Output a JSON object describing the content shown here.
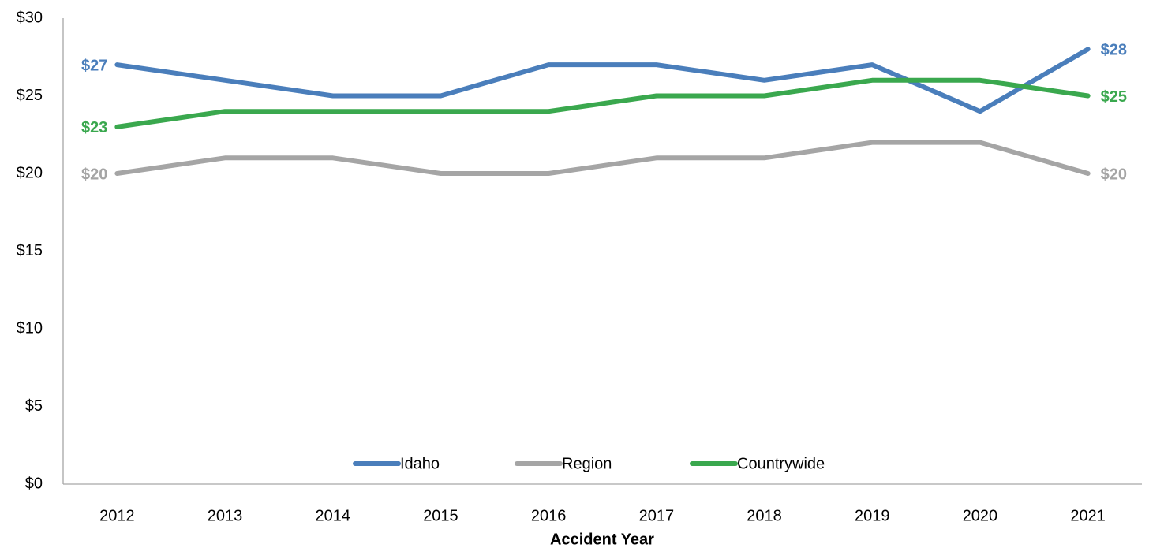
{
  "chart_data": {
    "type": "line",
    "x_label": "Accident Year",
    "categories": [
      "2012",
      "2013",
      "2014",
      "2015",
      "2016",
      "2017",
      "2018",
      "2019",
      "2020",
      "2021"
    ],
    "series": [
      {
        "name": "Idaho",
        "color": "#4a7ebb",
        "values": [
          27,
          26,
          25,
          25,
          27,
          27,
          26,
          27,
          24,
          28
        ],
        "value_labels": [
          "$27",
          null,
          null,
          null,
          null,
          null,
          null,
          null,
          null,
          "$28"
        ]
      },
      {
        "name": "Region",
        "color": "#a5a5a5",
        "values": [
          20,
          21,
          21,
          20,
          20,
          21,
          21,
          22,
          22,
          20
        ],
        "value_labels": [
          "$20",
          null,
          null,
          null,
          null,
          null,
          null,
          null,
          null,
          "$20"
        ]
      },
      {
        "name": "Countrywide",
        "color": "#3aa84e",
        "values": [
          23,
          24,
          24,
          24,
          24,
          25,
          25,
          26,
          26,
          25
        ],
        "value_labels": [
          "$23",
          null,
          null,
          null,
          null,
          null,
          null,
          null,
          null,
          "$25"
        ]
      }
    ],
    "ylim": [
      0,
      30
    ],
    "yticks": [
      {
        "value": 0,
        "label": "$0"
      },
      {
        "value": 5,
        "label": "$5"
      },
      {
        "value": 10,
        "label": "$10"
      },
      {
        "value": 15,
        "label": "$15"
      },
      {
        "value": 20,
        "label": "$20"
      },
      {
        "value": 25,
        "label": "$25"
      },
      {
        "value": 30,
        "label": "$30"
      }
    ],
    "grid": false,
    "legend": "bottom"
  }
}
